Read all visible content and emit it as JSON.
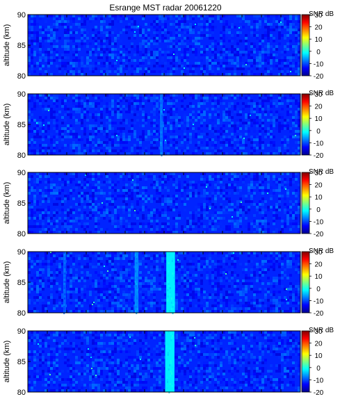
{
  "chart_data": {
    "type": "heatmap",
    "title": "Esrange MST radar 20061220",
    "ylabel": "altitude (km)",
    "ylim": [
      80,
      90
    ],
    "yticks": [
      80,
      85,
      90
    ],
    "colorbar": {
      "label": "SNR dB",
      "range": [
        -20,
        30
      ],
      "ticks": [
        -20,
        -10,
        0,
        10,
        20,
        30
      ],
      "colormap": "jet",
      "colors": [
        "#00008f",
        "#0000ff",
        "#0080ff",
        "#00ffff",
        "#80ff80",
        "#ffff00",
        "#ff8000",
        "#ff0000",
        "#800000"
      ]
    },
    "background_snr_db": -12,
    "panels": [
      {
        "name": "panel-1",
        "features": []
      },
      {
        "name": "panel-2",
        "features": [
          {
            "kind": "vertical-band",
            "x_frac": 0.485,
            "width_frac": 0.01,
            "snr_db": -8
          }
        ]
      },
      {
        "name": "panel-3",
        "features": []
      },
      {
        "name": "panel-4",
        "features": [
          {
            "kind": "vertical-band",
            "x_frac": 0.508,
            "width_frac": 0.032,
            "snr_db": -2
          },
          {
            "kind": "vertical-band",
            "x_frac": 0.392,
            "width_frac": 0.014,
            "snr_db": -7
          },
          {
            "kind": "vertical-band",
            "x_frac": 0.13,
            "width_frac": 0.01,
            "snr_db": -9
          }
        ]
      },
      {
        "name": "panel-5",
        "features": [
          {
            "kind": "vertical-band",
            "x_frac": 0.504,
            "width_frac": 0.034,
            "snr_db": -2
          }
        ]
      }
    ]
  }
}
